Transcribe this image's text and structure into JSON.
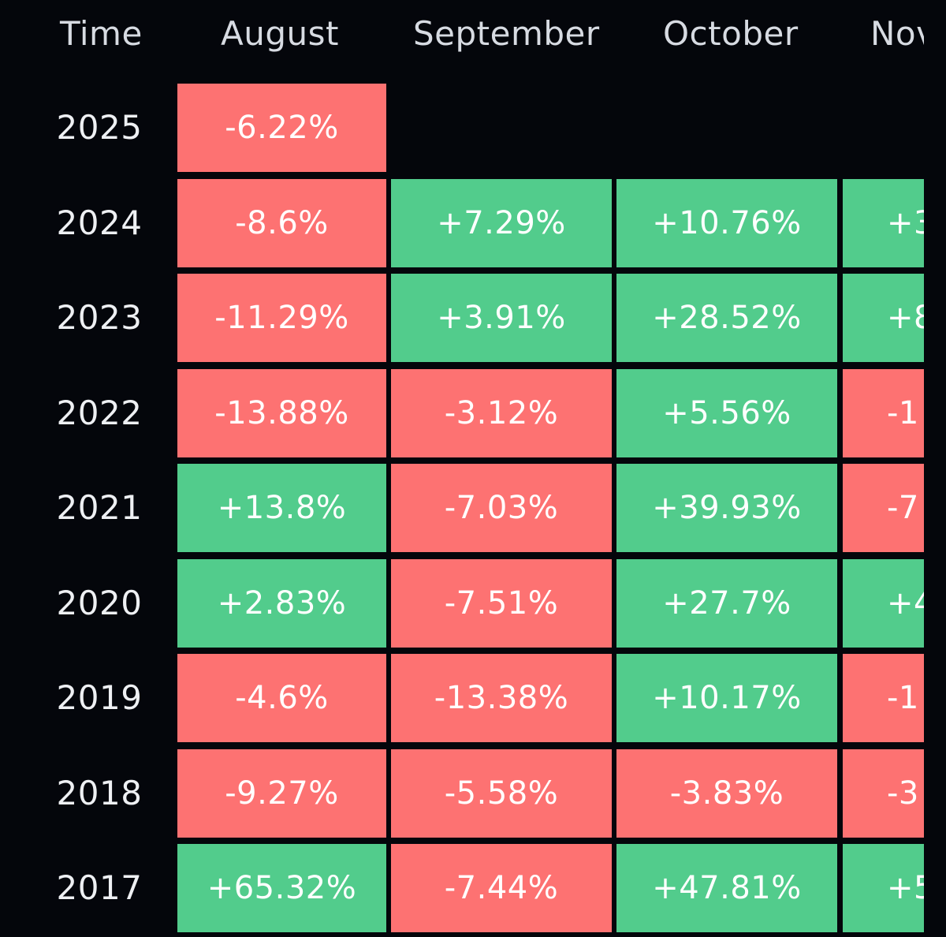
{
  "table": {
    "time_header": "Time",
    "months": [
      "August",
      "September",
      "October",
      "Nov"
    ],
    "rows": [
      {
        "year": "2025",
        "cells": [
          "-6.22%",
          "",
          "",
          ""
        ]
      },
      {
        "year": "2024",
        "cells": [
          "-8.6%",
          "+7.29%",
          "+10.76%",
          "+3"
        ]
      },
      {
        "year": "2023",
        "cells": [
          "-11.29%",
          "+3.91%",
          "+28.52%",
          "+8"
        ]
      },
      {
        "year": "2022",
        "cells": [
          "-13.88%",
          "-3.12%",
          "+5.56%",
          "-1"
        ]
      },
      {
        "year": "2021",
        "cells": [
          "+13.8%",
          "-7.03%",
          "+39.93%",
          "-7"
        ]
      },
      {
        "year": "2020",
        "cells": [
          "+2.83%",
          "-7.51%",
          "+27.7%",
          "+4"
        ]
      },
      {
        "year": "2019",
        "cells": [
          "-4.6%",
          "-13.38%",
          "+10.17%",
          "-1"
        ]
      },
      {
        "year": "2018",
        "cells": [
          "-9.27%",
          "-5.58%",
          "-3.83%",
          "-3"
        ]
      },
      {
        "year": "2017",
        "cells": [
          "+65.32%",
          "-7.44%",
          "+47.81%",
          "+5"
        ]
      }
    ]
  },
  "colors": {
    "background": "#04060b",
    "positive": "#52cc8c",
    "negative": "#fd7272",
    "header_text": "#d7dbe2",
    "cell_text": "#ffffff"
  }
}
